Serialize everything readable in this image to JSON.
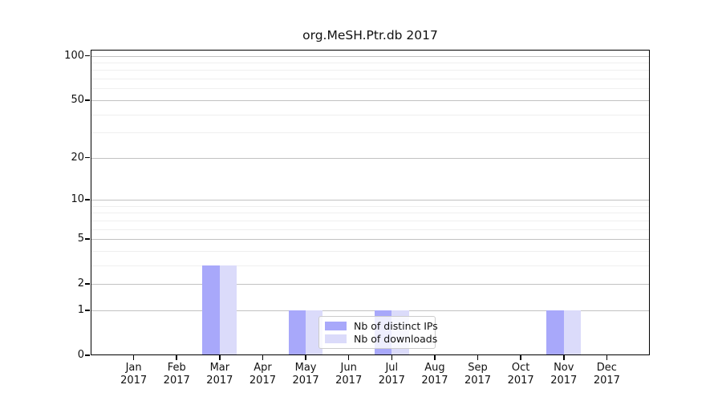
{
  "chart_data": {
    "type": "bar",
    "title": "org.MeSH.Ptr.db 2017",
    "x_categories": [
      "Jan",
      "Feb",
      "Mar",
      "Apr",
      "May",
      "Jun",
      "Jul",
      "Aug",
      "Sep",
      "Oct",
      "Nov",
      "Dec"
    ],
    "x_year": "2017",
    "series": [
      {
        "name": "Nb of distinct IPs",
        "color": "#a8a8fa",
        "values": [
          0,
          0,
          3,
          0,
          1,
          0,
          1,
          0,
          0,
          0,
          1,
          0
        ]
      },
      {
        "name": "Nb of downloads",
        "color": "#dbdbfa",
        "values": [
          0,
          0,
          3,
          0,
          1,
          0,
          1,
          0,
          0,
          0,
          1,
          0
        ]
      }
    ],
    "y_axis": {
      "scale": "log1p",
      "major_ticks": [
        0,
        1,
        2,
        5,
        10,
        20,
        50,
        100
      ],
      "major_tick_labels": [
        "0",
        "1",
        "2",
        "5",
        "10",
        "20",
        "50",
        "100"
      ],
      "minor_ticks": [
        3,
        4,
        6,
        7,
        8,
        9,
        30,
        40,
        60,
        70,
        80,
        90
      ],
      "ylim": [
        0,
        112
      ]
    },
    "grid": true,
    "legend_position": "inside lower-center"
  },
  "colors": {
    "major_grid": "#c2c2c2",
    "minor_grid": "#efefef",
    "spine": "#000000",
    "legend_border": "#cccccc",
    "background": "#ffffff"
  }
}
